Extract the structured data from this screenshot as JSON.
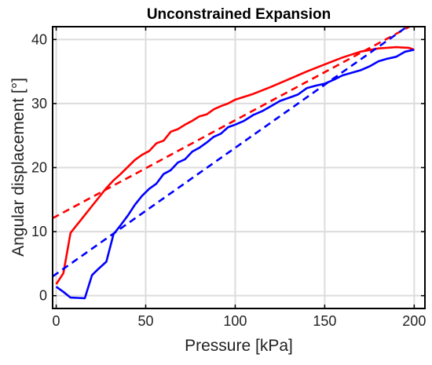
{
  "chart_data": {
    "type": "line",
    "title": "Unconstrained Expansion",
    "xlabel": "Pressure [kPa]",
    "ylabel": "Angular displacement [°]",
    "xlim": [
      -2,
      206
    ],
    "ylim": [
      -2,
      42
    ],
    "x_ticks": [
      0,
      50,
      100,
      150,
      200
    ],
    "y_ticks": [
      0,
      10,
      20,
      30,
      40
    ],
    "grid": true,
    "legend": "none",
    "series": [
      {
        "color": "#ff0000",
        "style": "solid",
        "x": [
          0,
          4,
          8,
          12,
          16,
          20,
          24,
          28,
          32,
          36,
          40,
          44,
          48,
          52,
          56,
          60,
          64,
          68,
          72,
          76,
          80,
          84,
          88,
          92,
          96,
          100,
          110,
          120,
          130,
          140,
          150,
          160,
          170,
          180,
          190,
          197,
          200
        ],
        "y": [
          1.8,
          3.5,
          9.8,
          11.2,
          12.6,
          14,
          15.4,
          16.8,
          18,
          19,
          20.1,
          21.2,
          22,
          22.6,
          23.8,
          24.2,
          25.6,
          26,
          26.7,
          27.3,
          28,
          28.3,
          29.1,
          29.6,
          30,
          30.6,
          31.5,
          32.6,
          33.8,
          35,
          36.1,
          37.2,
          38.1,
          38.6,
          38.8,
          38.7,
          38.4
        ]
      },
      {
        "color": "#0000ff",
        "style": "solid",
        "x": [
          0,
          4,
          8,
          12,
          16,
          20,
          24,
          28,
          32,
          36,
          40,
          44,
          48,
          52,
          56,
          60,
          64,
          68,
          72,
          76,
          80,
          84,
          88,
          92,
          96,
          100,
          105,
          110,
          115,
          120,
          125,
          130,
          135,
          140,
          145,
          150,
          155,
          160,
          165,
          170,
          175,
          180,
          185,
          190,
          195,
          200
        ],
        "y": [
          1.4,
          0.6,
          -0.3,
          -0.35,
          -0.4,
          3.2,
          4.3,
          5.3,
          9.6,
          11,
          12.5,
          14.2,
          15.6,
          16.7,
          17.5,
          19,
          19.6,
          20.8,
          21.3,
          22.5,
          23.1,
          23.9,
          24.8,
          25.3,
          26.3,
          26.7,
          27.3,
          28.2,
          28.8,
          29.6,
          30.4,
          30.9,
          31.4,
          32.4,
          32.8,
          33.1,
          33.7,
          34.4,
          34.8,
          35.2,
          35.8,
          36.6,
          37,
          37.3,
          38.1,
          38.4
        ]
      },
      {
        "color": "#ff0000",
        "style": "dashed",
        "x": [
          -2,
          206
        ],
        "y": [
          12.1,
          43.3
        ]
      },
      {
        "color": "#0000ff",
        "style": "dashed",
        "x": [
          -2,
          196
        ],
        "y": [
          3,
          42
        ]
      }
    ]
  }
}
